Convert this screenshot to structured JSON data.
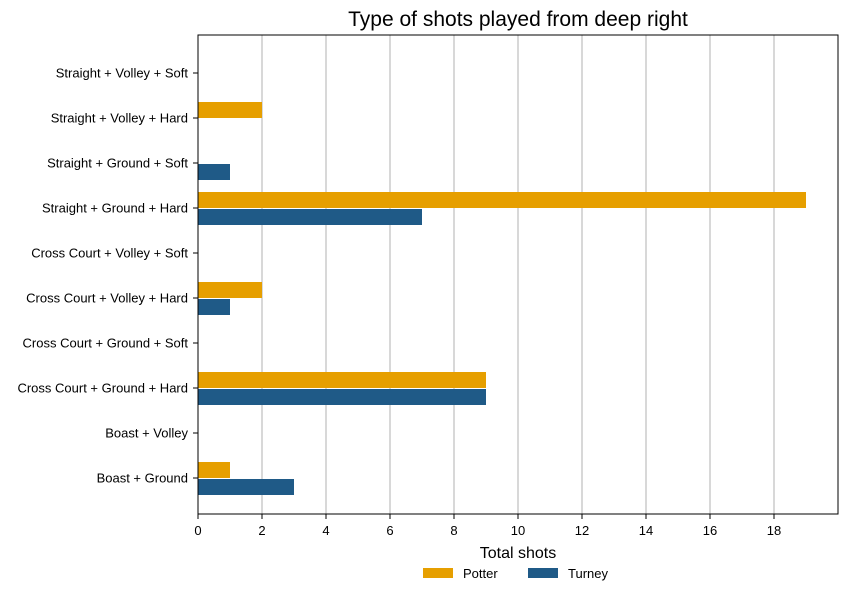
{
  "chart_data": {
    "type": "bar",
    "orientation": "horizontal",
    "title": "Type of shots played from deep right",
    "xlabel": "Total shots",
    "ylabel": "",
    "xlim": [
      0,
      20
    ],
    "xticks": [
      0,
      2,
      4,
      6,
      8,
      10,
      12,
      14,
      16,
      18
    ],
    "grid": "vertical",
    "legend_position": "bottom-center",
    "categories": [
      "Straight + Volley + Soft",
      "Straight + Volley + Hard",
      "Straight + Ground + Soft",
      "Straight + Ground + Hard",
      "Cross Court + Volley + Soft",
      "Cross Court + Volley + Hard",
      "Cross Court + Ground + Soft",
      "Cross Court + Ground + Hard",
      "Boast + Volley",
      "Boast + Ground"
    ],
    "series": [
      {
        "name": "Potter",
        "color": "#E69F00",
        "values": [
          0,
          2,
          0,
          19,
          0,
          2,
          0,
          9,
          0,
          1
        ]
      },
      {
        "name": "Turney",
        "color": "#1F5A87",
        "values": [
          0,
          0,
          1,
          7,
          0,
          1,
          0,
          9,
          0,
          3
        ]
      }
    ]
  }
}
